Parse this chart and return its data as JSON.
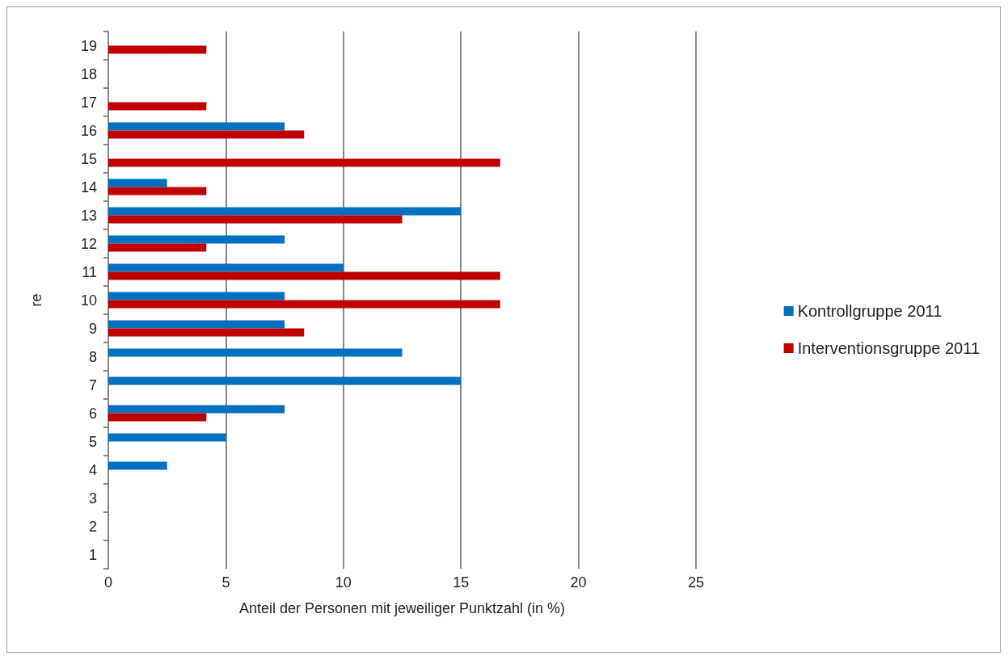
{
  "chart_data": {
    "type": "bar",
    "orientation": "horizontal",
    "xlabel": "Anteil der Personen mit jeweiliger Punktzahl (in %)",
    "ylabel": "re",
    "categories": [
      "19",
      "18",
      "17",
      "16",
      "15",
      "14",
      "13",
      "12",
      "11",
      "10",
      "9",
      "8",
      "7",
      "6",
      "5",
      "4",
      "3",
      "2",
      "1"
    ],
    "series": [
      {
        "name": "Kontrollgruppe 2011",
        "color": "#0070c0",
        "values": [
          null,
          null,
          null,
          7.5,
          null,
          2.5,
          15,
          7.5,
          10,
          7.5,
          7.5,
          12.5,
          15,
          7.5,
          5,
          2.5,
          null,
          null,
          null
        ]
      },
      {
        "name": "Interventionsgruppe 2011",
        "color": "#c00000",
        "values": [
          4.17,
          null,
          4.17,
          8.33,
          16.67,
          4.17,
          12.5,
          4.17,
          16.67,
          16.67,
          8.33,
          null,
          null,
          4.17,
          null,
          null,
          null,
          null,
          null
        ]
      }
    ],
    "xlim": [
      0,
      25
    ],
    "xticks": [
      0,
      5,
      10,
      15,
      20,
      25
    ],
    "grid": "x",
    "legend": "right"
  }
}
